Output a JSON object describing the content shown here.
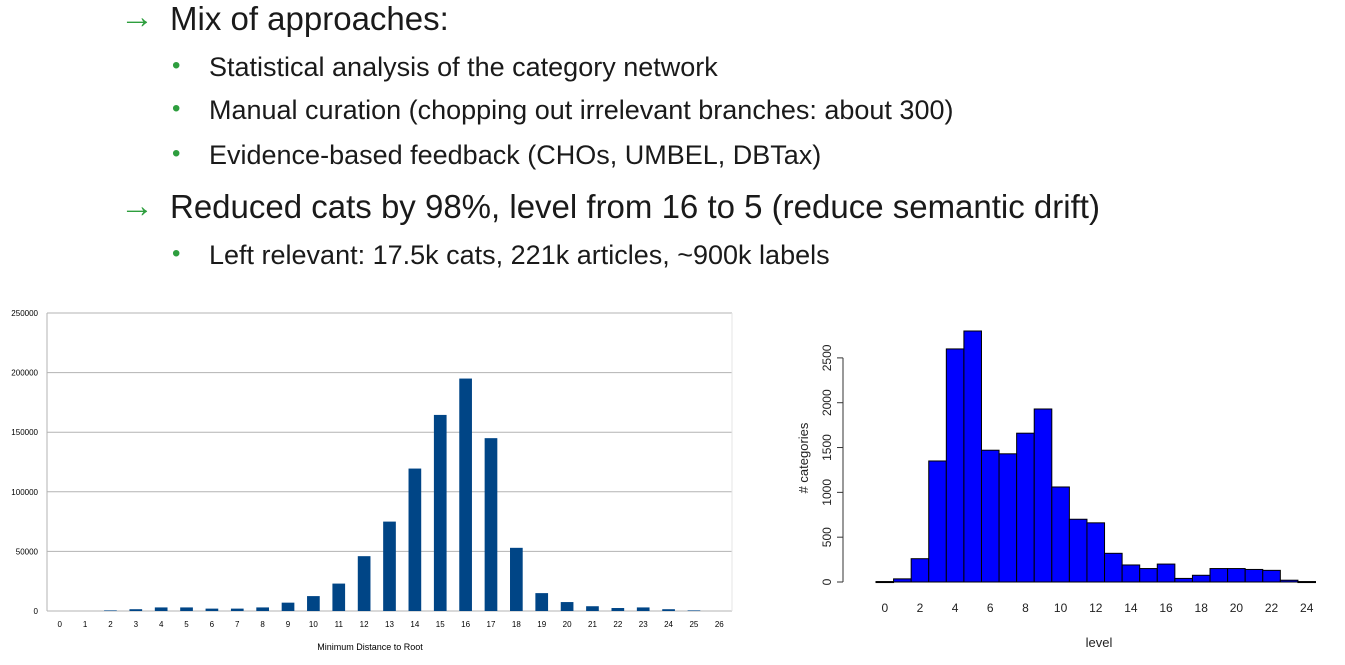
{
  "colors": {
    "arrow": "#2e9e3e",
    "bullet": "#2e9e3e",
    "left_bars": "#004586",
    "right_bars": "#0000ff",
    "grid": "#b3b3b3"
  },
  "bullets": {
    "arrow_glyph": "→",
    "dot_glyph": "•",
    "items": [
      {
        "level": 1,
        "text": "Mix of approaches:"
      },
      {
        "level": 2,
        "text": "Statistical analysis of the category network"
      },
      {
        "level": 2,
        "text": "Manual curation (chopping out irrelevant branches: about 300)"
      },
      {
        "level": 2,
        "text": "Evidence-based feedback (CHOs, UMBEL, DBTax)"
      },
      {
        "level": 1,
        "text": "Reduced cats by 98%, level from 16 to 5 (reduce semantic drift)"
      },
      {
        "level": 2,
        "text": "Left relevant: 17.5k cats, 221k articles, ~900k labels"
      }
    ]
  },
  "chart_data": [
    {
      "type": "bar",
      "xlabel": "Minimum Distance to Root",
      "ylabel": "",
      "ylim": [
        0,
        250000
      ],
      "yticks": [
        0,
        50000,
        100000,
        150000,
        200000,
        250000
      ],
      "grid": true,
      "categories": [
        "0",
        "1",
        "2",
        "3",
        "4",
        "5",
        "6",
        "7",
        "8",
        "9",
        "10",
        "11",
        "12",
        "13",
        "14",
        "15",
        "16",
        "17",
        "18",
        "19",
        "20",
        "21",
        "22",
        "23",
        "24",
        "25",
        "26"
      ],
      "values": [
        0,
        0,
        500,
        1500,
        3000,
        3000,
        2000,
        2000,
        3000,
        7000,
        12500,
        23000,
        46000,
        75000,
        119500,
        164500,
        195000,
        145000,
        53000,
        15000,
        7500,
        4000,
        2500,
        3000,
        1500,
        500,
        0
      ]
    },
    {
      "type": "bar",
      "xlabel": "level",
      "ylabel": "# categories",
      "ylim": [
        0,
        2800
      ],
      "yticks": [
        0,
        500,
        1000,
        1500,
        2000,
        2500
      ],
      "xticks": [
        0,
        2,
        4,
        6,
        8,
        10,
        12,
        14,
        16,
        18,
        20,
        22,
        24
      ],
      "categories": [
        "0",
        "1",
        "2",
        "3",
        "4",
        "5",
        "6",
        "7",
        "8",
        "9",
        "10",
        "11",
        "12",
        "13",
        "14",
        "15",
        "16",
        "17",
        "18",
        "19",
        "20",
        "21",
        "22",
        "23",
        "24"
      ],
      "values": [
        5,
        35,
        260,
        1350,
        2600,
        2800,
        1470,
        1430,
        1660,
        1930,
        1060,
        700,
        660,
        320,
        190,
        150,
        200,
        40,
        75,
        150,
        150,
        140,
        130,
        20,
        5
      ]
    }
  ]
}
